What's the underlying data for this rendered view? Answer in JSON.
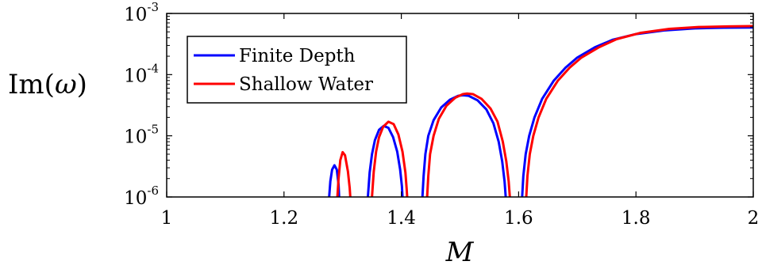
{
  "chart_data": {
    "type": "line",
    "xlabel": "M",
    "ylabel": "Im(ω)",
    "ylabel_parts": {
      "pre": "Im(",
      "sym": "ω",
      "post": ")"
    },
    "y_scale": "log",
    "xlim": [
      1,
      2
    ],
    "ylim": [
      1e-06,
      0.001
    ],
    "x_ticks": [
      1,
      1.2,
      1.4,
      1.6,
      1.8,
      2
    ],
    "x_tick_labels": [
      "1",
      "1.2",
      "1.4",
      "1.6",
      "1.8",
      "2"
    ],
    "y_ticks": [
      {
        "value": 1e-06,
        "base": "10",
        "exp": "-6"
      },
      {
        "value": 1e-05,
        "base": "10",
        "exp": "-5"
      },
      {
        "value": 0.0001,
        "base": "10",
        "exp": "-4"
      },
      {
        "value": 0.001,
        "base": "10",
        "exp": "-3"
      }
    ],
    "grid": false,
    "legend_position": "top-left",
    "series": [
      {
        "name": "Finite Depth",
        "color": "#0000ff",
        "segments": [
          {
            "x": [
              1.277,
              1.279,
              1.282,
              1.286,
              1.29,
              1.293,
              1.294
            ],
            "y": [
              1e-06,
              1.8e-06,
              2.8e-06,
              3.3e-06,
              2.8e-06,
              1.6e-06,
              1e-06
            ]
          },
          {
            "x": [
              1.343,
              1.346,
              1.35,
              1.355,
              1.362,
              1.37,
              1.378,
              1.386,
              1.393,
              1.398,
              1.401,
              1.402
            ],
            "y": [
              1e-06,
              2.5e-06,
              5e-06,
              8.5e-06,
              1.25e-05,
              1.45e-05,
              1.35e-05,
              9.5e-06,
              5.5e-06,
              2.8e-06,
              1.5e-06,
              1e-06
            ]
          },
          {
            "x": [
              1.436,
              1.438,
              1.441,
              1.446,
              1.455,
              1.468,
              1.483,
              1.497,
              1.505,
              1.515,
              1.53,
              1.545,
              1.557,
              1.566,
              1.572,
              1.576,
              1.578
            ],
            "y": [
              1e-06,
              2.2e-06,
              5e-06,
              1e-05,
              1.8e-05,
              2.9e-05,
              3.9e-05,
              4.5e-05,
              4.6e-05,
              4.5e-05,
              3.8e-05,
              2.7e-05,
              1.6e-05,
              8e-06,
              3.8e-06,
              1.8e-06,
              1e-06
            ]
          },
          {
            "x": [
              1.606,
              1.608,
              1.612,
              1.618,
              1.627,
              1.64,
              1.66,
              1.68,
              1.7,
              1.73,
              1.76,
              1.8,
              1.85,
              1.9,
              1.95,
              2.0
            ],
            "y": [
              1e-06,
              2.2e-06,
              5e-06,
              1e-05,
              2e-05,
              4e-05,
              8e-05,
              0.00013,
              0.00019,
              0.00028,
              0.00037,
              0.00046,
              0.00053,
              0.00057,
              0.000585,
              0.00059
            ]
          }
        ]
      },
      {
        "name": "Shallow Water",
        "color": "#ff0000",
        "segments": [
          {
            "x": [
              1.291,
              1.293,
              1.296,
              1.3,
              1.304,
              1.309,
              1.312,
              1.313
            ],
            "y": [
              1e-06,
              2e-06,
              4e-06,
              5.4e-06,
              4.8e-06,
              2.6e-06,
              1.4e-06,
              1e-06
            ]
          },
          {
            "x": [
              1.35,
              1.353,
              1.357,
              1.362,
              1.369,
              1.378,
              1.387,
              1.395,
              1.402,
              1.407,
              1.409,
              1.41
            ],
            "y": [
              1e-06,
              2.6e-06,
              5.5e-06,
              9.5e-06,
              1.4e-05,
              1.7e-05,
              1.55e-05,
              1.05e-05,
              5.5e-06,
              2.5e-06,
              1.4e-06,
              1e-06
            ]
          },
          {
            "x": [
              1.444,
              1.446,
              1.449,
              1.455,
              1.464,
              1.477,
              1.492,
              1.505,
              1.512,
              1.522,
              1.537,
              1.552,
              1.564,
              1.573,
              1.579,
              1.583,
              1.585
            ],
            "y": [
              1e-06,
              2.2e-06,
              5e-06,
              1e-05,
              1.9e-05,
              3.1e-05,
              4.2e-05,
              4.8e-05,
              4.9e-05,
              4.8e-05,
              4e-05,
              2.8e-05,
              1.7e-05,
              8e-06,
              3.8e-06,
              1.8e-06,
              1e-06
            ]
          },
          {
            "x": [
              1.613,
              1.615,
              1.619,
              1.625,
              1.634,
              1.647,
              1.667,
              1.687,
              1.707,
              1.737,
              1.767,
              1.807,
              1.857,
              1.907,
              1.957,
              2.0
            ],
            "y": [
              1e-06,
              2.2e-06,
              5e-06,
              1e-05,
              2e-05,
              4e-05,
              8e-05,
              0.00013,
              0.00019,
              0.00028,
              0.00038,
              0.00048,
              0.00056,
              0.0006,
              0.000615,
              0.00062
            ]
          }
        ]
      }
    ]
  }
}
